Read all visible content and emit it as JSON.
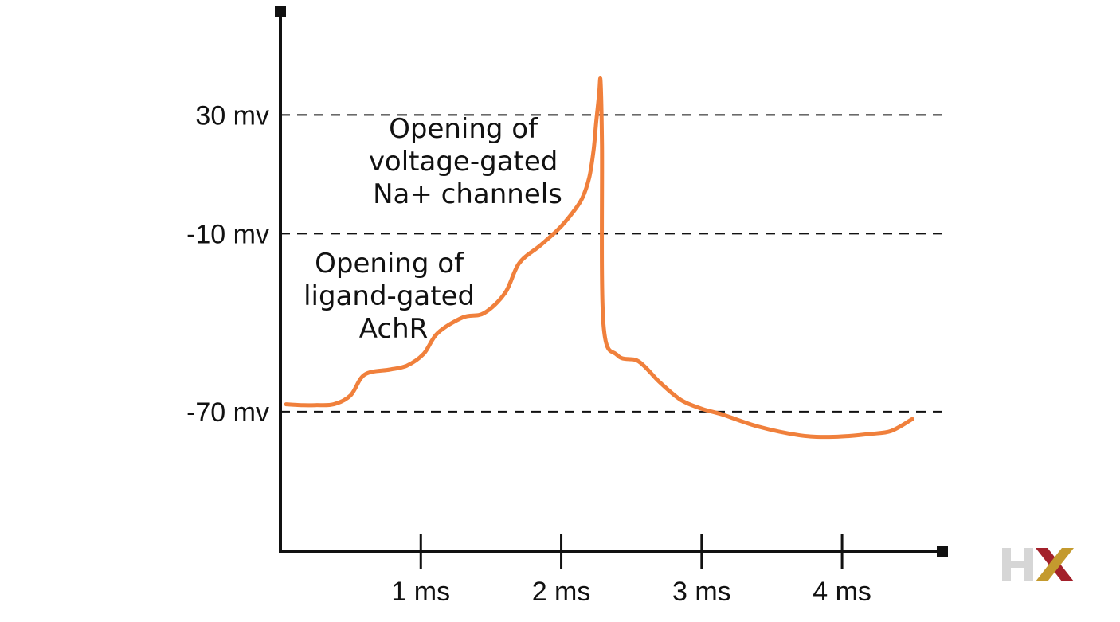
{
  "chart_data": {
    "type": "line",
    "title": "",
    "xlabel": "",
    "ylabel": "",
    "xlim": [
      0,
      4.72
    ],
    "ylim": [
      -117,
      65
    ],
    "grid": false,
    "x_ticks": [
      {
        "value": 1,
        "label": "1 ms"
      },
      {
        "value": 2,
        "label": "2 ms"
      },
      {
        "value": 3,
        "label": "3 ms"
      },
      {
        "value": 4,
        "label": "4 ms"
      }
    ],
    "y_reference_lines": [
      {
        "value": 30,
        "label": "30 mv"
      },
      {
        "value": -10,
        "label": "-10 mv"
      },
      {
        "value": -70,
        "label": "-70 mv"
      }
    ],
    "series": [
      {
        "name": "",
        "color": "#f0803c",
        "x": [
          0.04,
          0.15,
          0.25,
          0.38,
          0.5,
          0.6,
          0.78,
          0.9,
          1.02,
          1.12,
          1.3,
          1.45,
          1.6,
          1.7,
          1.85,
          1.98,
          2.08,
          2.15,
          2.2,
          2.23,
          2.25,
          2.27,
          2.28,
          2.29,
          2.3,
          2.4,
          2.55,
          2.7,
          2.85,
          3.0,
          3.15,
          3.4,
          3.7,
          3.9,
          4.05,
          4.2,
          4.35,
          4.5
        ],
        "y": [
          -67.5,
          -67.8,
          -67.8,
          -67.5,
          -64.5,
          -57.5,
          -55.8,
          -54.5,
          -50.5,
          -43.5,
          -38.2,
          -36.8,
          -30.0,
          -20.0,
          -14.0,
          -8.5,
          -3.0,
          2.0,
          9.0,
          18.0,
          28.0,
          37.0,
          41.5,
          20.0,
          -40.0,
          -51.0,
          -53.0,
          -60.0,
          -66.0,
          -69.0,
          -71.0,
          -75.0,
          -78.0,
          -78.5,
          -78.2,
          -77.5,
          -76.5,
          -72.5
        ]
      }
    ],
    "annotations": [
      {
        "lines": [
          "Opening of",
          "voltage-gated",
          "Na+ channels"
        ]
      },
      {
        "lines": [
          "Opening of",
          "ligand-gated",
          "AchR"
        ]
      }
    ]
  },
  "logo": {
    "letters": "HX",
    "h_color": "#d6d6d6",
    "x_color_left": "#a3202a",
    "x_color_right": "#c49a2e"
  }
}
